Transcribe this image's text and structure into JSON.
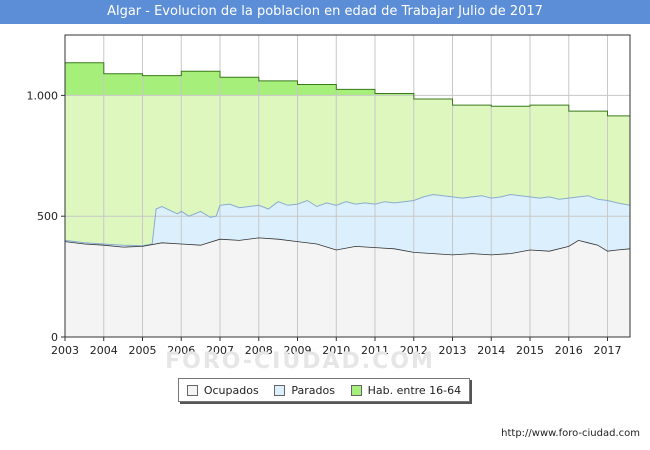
{
  "title": "Algar - Evolucion de la poblacion en edad de Trabajar Julio de 2017",
  "watermark": "FORO-CIUDAD.COM",
  "footer_url": "http://www.foro-ciudad.com",
  "colors": {
    "title_bg": "#5b8ed6",
    "hab_fill": "#ddf7bf",
    "hab_line": "#3a7a1a",
    "parados_fill": "#dceffc",
    "parados_line": "#8aaccc",
    "ocupados_fill": "#f4f4f4",
    "ocupados_line": "#333333",
    "hab_swatch": "#a5ef7a",
    "parados_swatch": "#dceffc",
    "ocupados_swatch": "#f4f4f4"
  },
  "chart_data": {
    "type": "area",
    "title": "Algar - Evolucion de la poblacion en edad de Trabajar Julio de 2017",
    "xlim": [
      2003.0,
      2017.58
    ],
    "ylim": [
      0,
      1250
    ],
    "x_ticks": [
      "2003",
      "2004",
      "2005",
      "2006",
      "2007",
      "2008",
      "2009",
      "2010",
      "2011",
      "2012",
      "2013",
      "2014",
      "2015",
      "2016",
      "2017"
    ],
    "y_ticks": [
      {
        "value": 0,
        "label": "0"
      },
      {
        "value": 500,
        "label": "500"
      },
      {
        "value": 1000,
        "label": "1.000"
      }
    ],
    "grid": true,
    "legend_position": "bottom-center",
    "series": [
      {
        "name": "Hab. entre 16-64",
        "x": [
          2003.0,
          2004.0,
          2004.0,
          2005.0,
          2005.0,
          2006.0,
          2006.0,
          2007.0,
          2007.0,
          2008.0,
          2008.0,
          2009.0,
          2009.0,
          2010.0,
          2010.0,
          2011.0,
          2011.0,
          2012.0,
          2012.0,
          2013.0,
          2013.0,
          2014.0,
          2014.0,
          2015.0,
          2015.0,
          2016.0,
          2016.0,
          2017.0,
          2017.0,
          2017.58
        ],
        "values": [
          1135,
          1135,
          1090,
          1090,
          1082,
          1082,
          1100,
          1100,
          1075,
          1075,
          1060,
          1060,
          1045,
          1045,
          1025,
          1025,
          1008,
          1008,
          985,
          985,
          960,
          960,
          955,
          955,
          960,
          960,
          935,
          935,
          915,
          915
        ]
      },
      {
        "name": "Parados",
        "x": [
          2003.0,
          2003.5,
          2004.0,
          2004.5,
          2005.0,
          2005.25,
          2005.35,
          2005.5,
          2005.7,
          2005.9,
          2006.0,
          2006.2,
          2006.5,
          2006.75,
          2006.9,
          2007.0,
          2007.25,
          2007.5,
          2007.75,
          2008.0,
          2008.25,
          2008.5,
          2008.75,
          2009.0,
          2009.25,
          2009.5,
          2009.75,
          2010.0,
          2010.25,
          2010.5,
          2010.75,
          2011.0,
          2011.25,
          2011.5,
          2011.75,
          2012.0,
          2012.25,
          2012.5,
          2012.75,
          2013.0,
          2013.25,
          2013.5,
          2013.75,
          2014.0,
          2014.25,
          2014.5,
          2014.75,
          2015.0,
          2015.25,
          2015.5,
          2015.75,
          2016.0,
          2016.25,
          2016.5,
          2016.75,
          2017.0,
          2017.25,
          2017.58
        ],
        "values": [
          400,
          390,
          385,
          380,
          378,
          385,
          530,
          540,
          525,
          510,
          520,
          500,
          520,
          495,
          500,
          545,
          550,
          535,
          540,
          545,
          530,
          560,
          545,
          550,
          565,
          540,
          555,
          545,
          560,
          550,
          555,
          550,
          560,
          555,
          560,
          565,
          580,
          590,
          585,
          580,
          575,
          580,
          585,
          575,
          580,
          590,
          585,
          580,
          575,
          580,
          570,
          575,
          580,
          585,
          570,
          565,
          555,
          545
        ]
      },
      {
        "name": "Ocupados",
        "x": [
          2003.0,
          2003.5,
          2004.0,
          2004.5,
          2005.0,
          2005.5,
          2006.0,
          2006.5,
          2007.0,
          2007.5,
          2008.0,
          2008.5,
          2009.0,
          2009.5,
          2010.0,
          2010.5,
          2011.0,
          2011.5,
          2012.0,
          2012.5,
          2013.0,
          2013.5,
          2014.0,
          2014.5,
          2015.0,
          2015.5,
          2016.0,
          2016.25,
          2016.5,
          2016.75,
          2017.0,
          2017.25,
          2017.58
        ],
        "values": [
          395,
          385,
          380,
          372,
          375,
          390,
          385,
          380,
          405,
          400,
          410,
          405,
          395,
          385,
          360,
          375,
          370,
          365,
          350,
          345,
          340,
          345,
          340,
          345,
          360,
          355,
          375,
          400,
          390,
          380,
          355,
          360,
          365
        ]
      }
    ]
  },
  "legend": {
    "items": [
      {
        "label": "Ocupados",
        "swatch": "#f4f4f4"
      },
      {
        "label": "Parados",
        "swatch": "#dceffc"
      },
      {
        "label": "Hab. entre 16-64",
        "swatch": "#a5ef7a"
      }
    ]
  }
}
